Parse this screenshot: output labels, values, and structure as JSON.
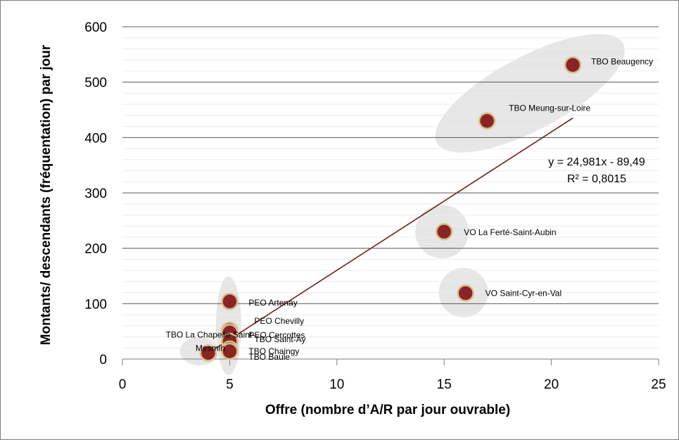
{
  "chart_data": {
    "type": "scatter",
    "title": "",
    "xlabel": "Offre (nombre d’A/R par jour ouvrable)",
    "ylabel": "Montants/ descendants (fréquentation)  par jour",
    "xlim": [
      0,
      25
    ],
    "ylim": [
      0,
      600
    ],
    "xticks": [
      0,
      5,
      10,
      15,
      20,
      25
    ],
    "yticks": [
      0,
      100,
      200,
      300,
      400,
      500,
      600
    ],
    "grid": "major and minor horizontal",
    "points": [
      {
        "label": "TBO Beaugency",
        "x": 21,
        "y": 531
      },
      {
        "label": "TBO Meung-sur-Loire",
        "x": 17,
        "y": 430
      },
      {
        "label": "VO La Ferté-Saint-Aubin",
        "x": 15,
        "y": 230
      },
      {
        "label": "VO Saint-Cyr-en-Val",
        "x": 16,
        "y": 119
      },
      {
        "label": "PEO Artenay",
        "x": 5,
        "y": 104
      },
      {
        "label": "PEO Chevilly",
        "x": 5,
        "y": 52
      },
      {
        "label": "PEO Cercottes",
        "x": 5,
        "y": 48
      },
      {
        "label": "TBO Saint-Ay",
        "x": 5,
        "y": 32
      },
      {
        "label": "TBO Chaingy",
        "x": 5,
        "y": 18
      },
      {
        "label": "TBO Baule",
        "x": 5,
        "y": 14
      },
      {
        "label": "TBO La Chapelle Saint-Mesmin",
        "x": 4,
        "y": 11
      }
    ],
    "trendline": {
      "type": "linear",
      "slope": 24.981,
      "intercept": -89.49,
      "x_range": [
        4,
        21
      ],
      "equation": "y = 24,981x - 89,49",
      "r_squared": "R² = 0,8015"
    },
    "colors": {
      "marker_fill": "#8b2525",
      "marker_stroke": "#d8c08a",
      "trendline": "#6b1f1f",
      "cluster_shade": "#e6e6e6",
      "grid_major": "#595959",
      "grid_minor": "#ececec"
    }
  }
}
